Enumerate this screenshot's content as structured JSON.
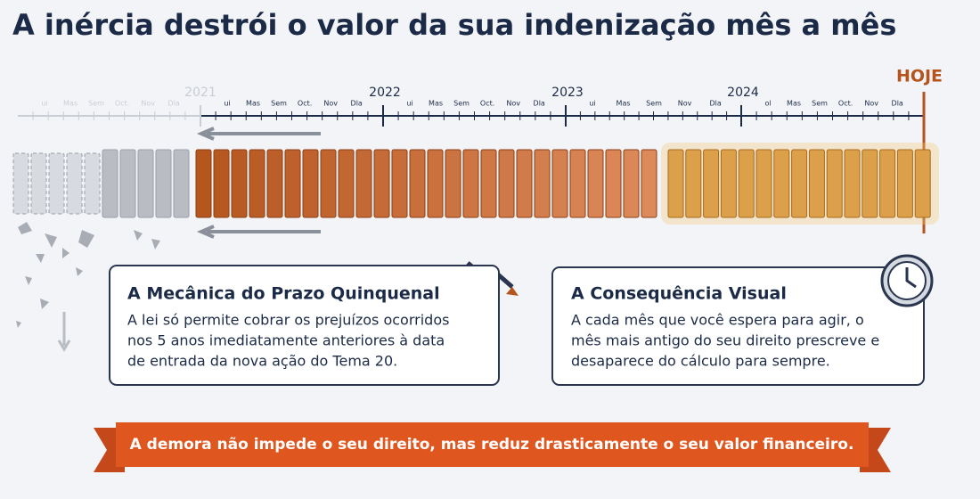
{
  "header": {
    "title": "A inércia destrói o valor da sua indenização mês a mês"
  },
  "timeline": {
    "years": [
      "2021",
      "2022",
      "2023",
      "2024"
    ],
    "today": "HOJE",
    "month_groups": [
      [
        "ui",
        "Mas",
        "Sem",
        "Oct.",
        "Nov",
        "Dla"
      ],
      [
        "ui",
        "Mas",
        "Sem",
        "Oct.",
        "Nov",
        "Dla"
      ],
      [
        "ui",
        "Mas",
        "Sem",
        "Oct.",
        "Nov",
        "Dla"
      ],
      [
        "ui",
        "Mas",
        "Sem",
        "Nov",
        "Dla"
      ],
      [
        "ol",
        "Mas",
        "Sem",
        "Oct.",
        "Nov",
        "Dla"
      ]
    ]
  },
  "cards": [
    {
      "title": "A Mecânica do Prazo Quinquenal",
      "lines": [
        "A lei só permite cobrar os prejuízos ocorridos",
        "nos 5 anos imediatamente anteriores à data",
        "de entrada da nova ação do Tema 20."
      ]
    },
    {
      "title": "A Consequência Visual",
      "lines": [
        "A cada mês que você espera para agir, o",
        "mês mais antigo do seu direito prescreve e",
        "desaparece do cálculo para sempre."
      ]
    }
  ],
  "banner": {
    "text": "A demora não impede o seu direito, mas reduz drasticamente o seu valor financeiro."
  }
}
